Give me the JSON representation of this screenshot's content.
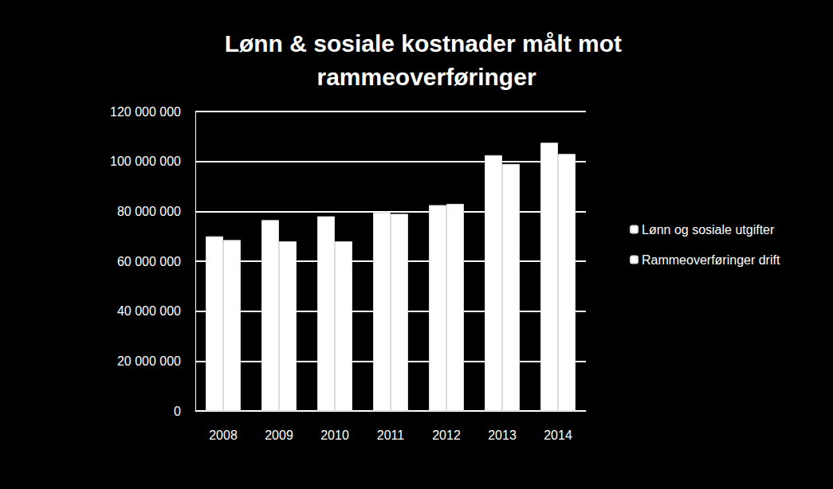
{
  "chart_data": {
    "type": "bar",
    "title": "Lønn & sosiale kostnader målt mot rammeoverføringer",
    "categories": [
      "2008",
      "2009",
      "2010",
      "2011",
      "2012",
      "2013",
      "2014"
    ],
    "series": [
      {
        "name": "Lønn og sosiale utgifter",
        "color": "#ffffff",
        "values": [
          70000000,
          76500000,
          78000000,
          79500000,
          82500000,
          102500000,
          107500000
        ]
      },
      {
        "name": "Rammeoverføringer drift",
        "color": "#ffffff",
        "values": [
          68500000,
          68000000,
          68000000,
          79000000,
          83000000,
          99000000,
          103000000
        ]
      }
    ],
    "ylim": [
      0,
      120000000
    ],
    "yticks": [
      0,
      {
        "value": 20000000,
        "label": "20 000 000"
      },
      {
        "value": 40000000,
        "label": "40 000 000"
      },
      {
        "value": 60000000,
        "label": "60 000 000"
      },
      {
        "value": 80000000,
        "label": "80 000 000"
      },
      {
        "value": 100000000,
        "label": "100 000 000"
      },
      {
        "value": 120000000,
        "label": "120 000 000"
      }
    ],
    "grid": true,
    "legend": "right"
  }
}
